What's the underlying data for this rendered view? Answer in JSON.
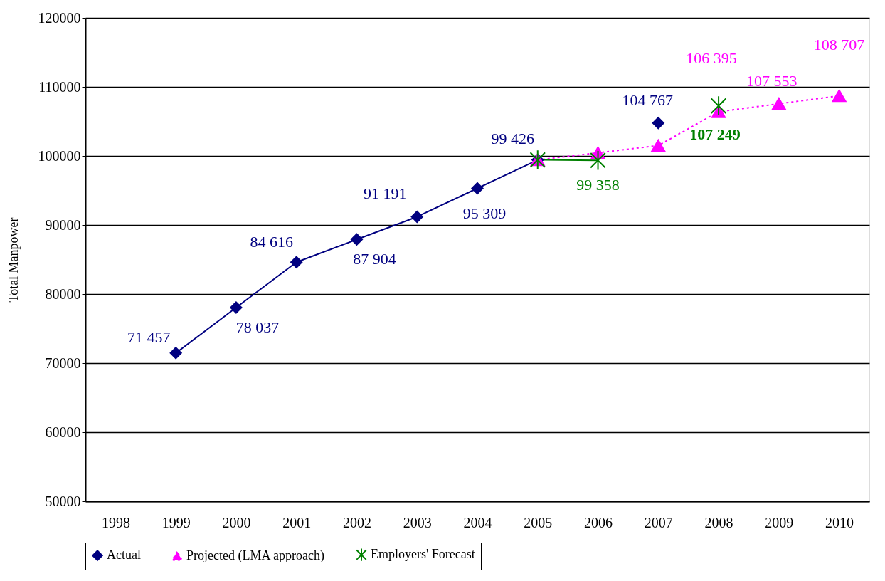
{
  "chart_data": {
    "type": "line",
    "xlabel": null,
    "ylabel": "Total Manpower",
    "categories": [
      "1998",
      "1999",
      "2000",
      "2001",
      "2002",
      "2003",
      "2004",
      "2005",
      "2006",
      "2007",
      "2008",
      "2009",
      "2010"
    ],
    "ylim": [
      50000,
      120000
    ],
    "yticks": [
      50000,
      60000,
      70000,
      80000,
      90000,
      100000,
      110000,
      120000
    ],
    "grid": "y",
    "legend": "bottom",
    "series": [
      {
        "name": "Actual",
        "color": "#000080",
        "marker": "diamond",
        "line_style": "solid",
        "values": [
          null,
          71457,
          78037,
          84616,
          87904,
          91191,
          95309,
          99426,
          null,
          104767,
          null,
          null,
          null
        ],
        "value_labels": [
          null,
          "71 457",
          "78 037",
          "84 616",
          "87 904",
          "91 191",
          "95 309",
          "99 426",
          null,
          "104 767",
          null,
          null,
          null
        ]
      },
      {
        "name": "Projected (LMA approach)",
        "color": "#ff00ff",
        "marker": "triangle",
        "line_style": "dotted",
        "values": [
          null,
          null,
          null,
          null,
          null,
          null,
          null,
          99426,
          100450,
          101500,
          106395,
          107553,
          108707
        ],
        "value_labels": [
          null,
          null,
          null,
          null,
          null,
          null,
          null,
          null,
          null,
          null,
          "106 395",
          "107 553",
          "108 707"
        ]
      },
      {
        "name": "Employers' Forecast",
        "color": "#008000",
        "marker": "cross",
        "line_style": "solid",
        "values": [
          null,
          null,
          null,
          null,
          null,
          null,
          null,
          99426,
          99358,
          null,
          107249,
          null,
          null
        ],
        "value_labels": [
          null,
          null,
          null,
          null,
          null,
          null,
          null,
          null,
          "99 358",
          null,
          "107 249",
          null,
          null
        ]
      }
    ]
  }
}
